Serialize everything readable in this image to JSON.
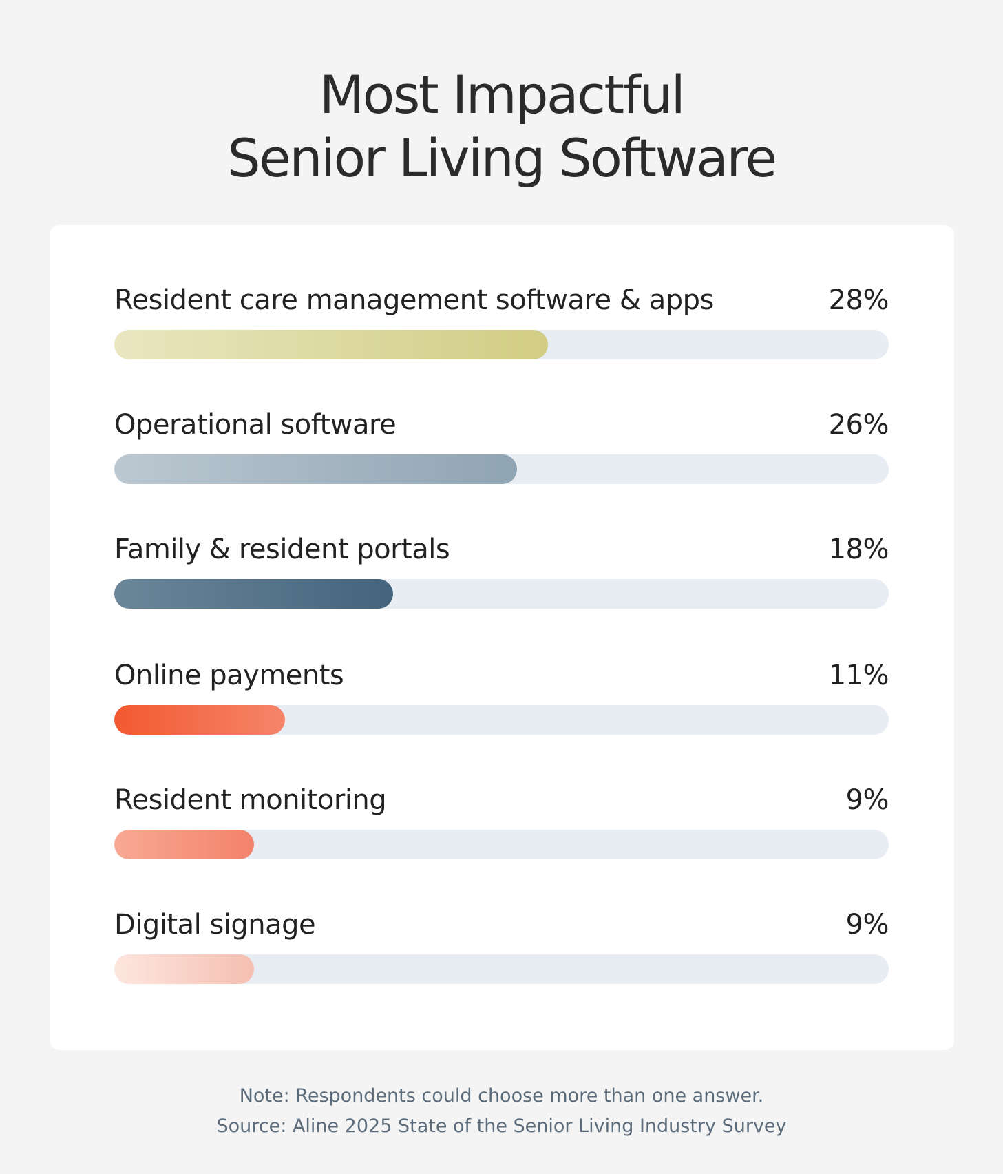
{
  "title": {
    "line1": "Most Impactful",
    "line2": "Senior Living Software"
  },
  "chart_data": {
    "type": "bar",
    "orientation": "horizontal",
    "categories": [
      "Resident care management software & apps",
      "Operational software",
      "Family & resident portals",
      "Online payments",
      "Resident monitoring",
      "Digital signage"
    ],
    "values": [
      28,
      26,
      18,
      11,
      9,
      9
    ],
    "value_labels": [
      "28%",
      "26%",
      "18%",
      "11%",
      "9%",
      "9%"
    ],
    "xlim": [
      0,
      50
    ],
    "track_color": "#e8ecf3",
    "bar_gradients": [
      [
        "#e9e6c0",
        "#d1cd84"
      ],
      [
        "#bcc8d1",
        "#8fa4b3"
      ],
      [
        "#6b8699",
        "#44647d"
      ],
      [
        "#f25930",
        "#f6856a"
      ],
      [
        "#f8a993",
        "#f3826b"
      ],
      [
        "#fde6df",
        "#f5bfb1"
      ]
    ]
  },
  "footer": {
    "note": "Note: Respondents could choose more than one answer.",
    "source": "Source: Aline 2025 State of the Senior Living Industry Survey"
  }
}
